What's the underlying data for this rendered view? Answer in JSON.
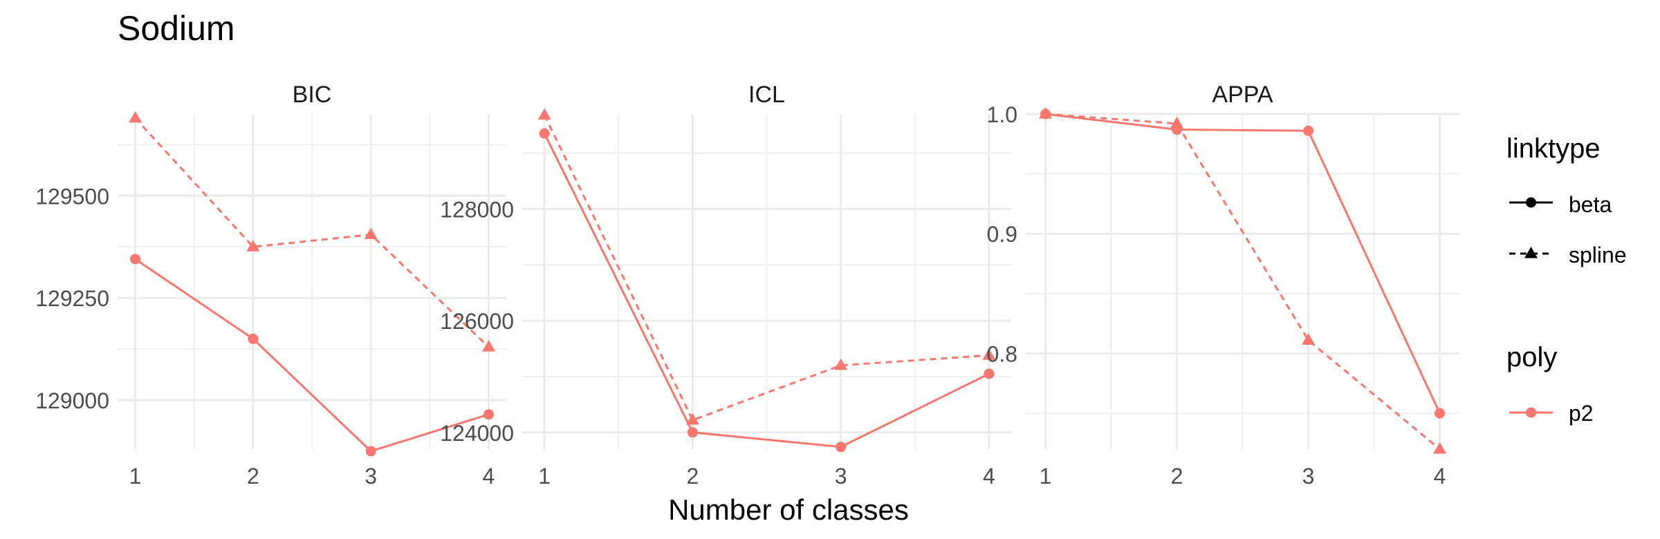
{
  "chart_data": {
    "type": "line",
    "title": "Sodium",
    "xlabel": "Number of classes",
    "colors": {
      "series": "#F8766D",
      "grid": "#EBEBEB",
      "text": "#4D4D4D",
      "title": "#000000",
      "legend_key": "#000000"
    },
    "x": [
      1,
      2,
      3,
      4
    ],
    "panels": [
      {
        "name": "BIC",
        "ylim": [
          128880,
          129700
        ],
        "yticks": [
          129000,
          129250,
          129500
        ],
        "ytick_labels": [
          "129000",
          "129250",
          "129500"
        ],
        "series": [
          {
            "linktype": "beta",
            "poly": "p2",
            "values": [
              129345,
              129150,
              128875,
              128965
            ]
          },
          {
            "linktype": "spline",
            "poly": "p2",
            "values": [
              129690,
              129375,
              129405,
              129130
            ]
          }
        ]
      },
      {
        "name": "ICL",
        "ylim": [
          123700,
          129700
        ],
        "yticks": [
          124000,
          126000,
          128000
        ],
        "ytick_labels": [
          "124000",
          "126000",
          "128000"
        ],
        "series": [
          {
            "linktype": "beta",
            "poly": "p2",
            "values": [
              129350,
              124000,
              123740,
              125050
            ]
          },
          {
            "linktype": "spline",
            "poly": "p2",
            "values": [
              129680,
              124220,
              125200,
              125380
            ]
          }
        ]
      },
      {
        "name": "APPA",
        "ylim": [
          0.72,
          1.0
        ],
        "yticks": [
          0.8,
          0.9,
          1.0
        ],
        "ytick_labels": [
          "0.8",
          "0.9",
          "1.0"
        ],
        "series": [
          {
            "linktype": "beta",
            "poly": "p2",
            "values": [
              1.0,
              0.987,
              0.986,
              0.75
            ]
          },
          {
            "linktype": "spline",
            "poly": "p2",
            "values": [
              1.0,
              0.992,
              0.811,
              0.72
            ]
          }
        ]
      }
    ],
    "legend": {
      "position": "right",
      "linktype": {
        "title": "linktype",
        "items": [
          "beta",
          "spline"
        ]
      },
      "poly": {
        "title": "poly",
        "items": [
          "p2"
        ]
      }
    },
    "grid": true
  }
}
